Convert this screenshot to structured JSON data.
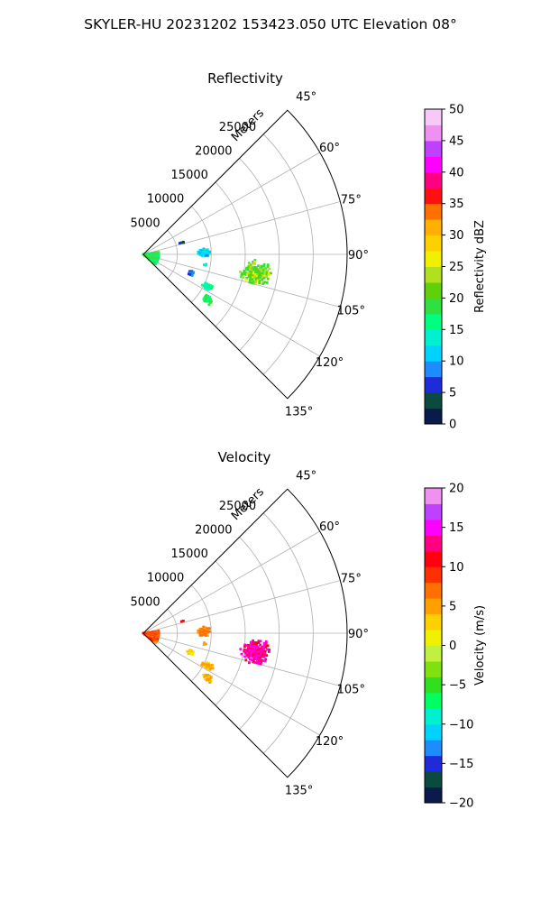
{
  "figure_title": "SKYLER-HU  20231202  153423.050 UTC Elevation 08°",
  "chart_data": [
    {
      "type": "heatmap",
      "title": "Reflectivity",
      "radial_label": "Meters",
      "radial_ticks": [
        "5000",
        "10000",
        "15000",
        "20000",
        "25000"
      ],
      "radial_values": [
        5000,
        10000,
        15000,
        20000,
        25000
      ],
      "range_max": 30000,
      "azimuth_range": [
        45,
        135
      ],
      "azimuth_ticks": [
        "45°",
        "60°",
        "75°",
        "90°",
        "105°",
        "120°",
        "135°"
      ],
      "azimuth_values": [
        45,
        60,
        75,
        90,
        105,
        120,
        135
      ],
      "colorbar": {
        "label": "Reflectivity dBZ",
        "range": [
          0,
          50
        ],
        "ticks": [
          "0",
          "5",
          "10",
          "15",
          "20",
          "25",
          "30",
          "35",
          "40",
          "45",
          "50"
        ],
        "tick_values": [
          0,
          5,
          10,
          15,
          20,
          25,
          30,
          35,
          40,
          45,
          50
        ],
        "colormap": [
          {
            "v": 0,
            "c": "#0a1a4a"
          },
          {
            "v": 2.5,
            "c": "#0b4a3e"
          },
          {
            "v": 5,
            "c": "#1f2bd8"
          },
          {
            "v": 7.5,
            "c": "#1c8cff"
          },
          {
            "v": 10,
            "c": "#00d2ff"
          },
          {
            "v": 12.5,
            "c": "#00f0d0"
          },
          {
            "v": 15,
            "c": "#00ff80"
          },
          {
            "v": 17.5,
            "c": "#30e040"
          },
          {
            "v": 20,
            "c": "#60d00a"
          },
          {
            "v": 22.5,
            "c": "#b0e020"
          },
          {
            "v": 25,
            "c": "#f0f000"
          },
          {
            "v": 27.5,
            "c": "#ffd000"
          },
          {
            "v": 30,
            "c": "#ffb000"
          },
          {
            "v": 32.5,
            "c": "#ff7000"
          },
          {
            "v": 35,
            "c": "#ff1010"
          },
          {
            "v": 37.5,
            "c": "#ff0080"
          },
          {
            "v": 40,
            "c": "#ff00ff"
          },
          {
            "v": 42.5,
            "c": "#c040ff"
          },
          {
            "v": 45,
            "c": "#f090f0"
          },
          {
            "v": 47.5,
            "c": "#f8c8f8"
          },
          {
            "v": 50,
            "c": "#fff0ff"
          }
        ]
      },
      "echo_regions": [
        {
          "az": [
            82,
            130
          ],
          "r": [
            0,
            2500
          ],
          "values": [
            14,
            22
          ]
        },
        {
          "az": [
            72,
            74
          ],
          "r": [
            5600,
            6400
          ],
          "values": [
            3,
            8
          ]
        },
        {
          "az": [
            84,
            93
          ],
          "r": [
            7800,
            10000
          ],
          "values": [
            9,
            14
          ]
        },
        {
          "az": [
            98,
            101
          ],
          "r": [
            8800,
            9600
          ],
          "values": [
            12,
            15
          ]
        },
        {
          "az": [
            108,
            115
          ],
          "r": [
            7000,
            8000
          ],
          "values": [
            6,
            9
          ]
        },
        {
          "az": [
            114,
            120
          ],
          "r": [
            9500,
            11500
          ],
          "values": [
            14,
            18
          ]
        },
        {
          "az": [
            122,
            128
          ],
          "r": [
            10500,
            12500
          ],
          "values": [
            15,
            19
          ]
        },
        {
          "az": [
            93,
            106
          ],
          "r": [
            14500,
            19200
          ],
          "values": [
            17,
            26
          ]
        }
      ]
    },
    {
      "type": "heatmap",
      "title": "Velocity",
      "radial_label": "Meters",
      "radial_ticks": [
        "5000",
        "10000",
        "15000",
        "20000",
        "25000"
      ],
      "radial_values": [
        5000,
        10000,
        15000,
        20000,
        25000
      ],
      "range_max": 30000,
      "azimuth_range": [
        45,
        135
      ],
      "azimuth_ticks": [
        "45°",
        "60°",
        "75°",
        "90°",
        "105°",
        "120°",
        "135°"
      ],
      "azimuth_values": [
        45,
        60,
        75,
        90,
        105,
        120,
        135
      ],
      "colorbar": {
        "label": "Velocity (m/s)",
        "range": [
          -20,
          20
        ],
        "ticks": [
          "−20",
          "−15",
          "−10",
          "−5",
          "0",
          "5",
          "10",
          "15",
          "20"
        ],
        "tick_values": [
          -20,
          -15,
          -10,
          -5,
          0,
          5,
          10,
          15,
          20
        ],
        "colormap": [
          {
            "v": -20,
            "c": "#0a1a4a"
          },
          {
            "v": -18,
            "c": "#0b4a3e"
          },
          {
            "v": -16,
            "c": "#1f2bd8"
          },
          {
            "v": -14,
            "c": "#1c8cff"
          },
          {
            "v": -12,
            "c": "#00d2ff"
          },
          {
            "v": -10,
            "c": "#00f0d0"
          },
          {
            "v": -8,
            "c": "#00ff60"
          },
          {
            "v": -6,
            "c": "#30e020"
          },
          {
            "v": -4,
            "c": "#80e010"
          },
          {
            "v": -2,
            "c": "#c0f040"
          },
          {
            "v": 0,
            "c": "#f0f000"
          },
          {
            "v": 2,
            "c": "#ffd000"
          },
          {
            "v": 4,
            "c": "#ffa000"
          },
          {
            "v": 6,
            "c": "#ff7000"
          },
          {
            "v": 8,
            "c": "#ff3000"
          },
          {
            "v": 10,
            "c": "#ff0010"
          },
          {
            "v": 12,
            "c": "#ff0080"
          },
          {
            "v": 14,
            "c": "#ff00ff"
          },
          {
            "v": 16,
            "c": "#c040ff"
          },
          {
            "v": 18,
            "c": "#f090f0"
          },
          {
            "v": 20,
            "c": "#fff0ff"
          }
        ]
      },
      "echo_regions": [
        {
          "az": [
            82,
            128
          ],
          "r": [
            0,
            2500
          ],
          "values": [
            4,
            12
          ]
        },
        {
          "az": [
            72,
            74
          ],
          "r": [
            5600,
            6400
          ],
          "values": [
            10,
            12
          ]
        },
        {
          "az": [
            84,
            93
          ],
          "r": [
            7800,
            10000
          ],
          "values": [
            5,
            8
          ]
        },
        {
          "az": [
            98,
            101
          ],
          "r": [
            8800,
            9600
          ],
          "values": [
            5,
            7
          ]
        },
        {
          "az": [
            108,
            115
          ],
          "r": [
            7000,
            8000
          ],
          "values": [
            1,
            3
          ]
        },
        {
          "az": [
            114,
            120
          ],
          "r": [
            9500,
            11500
          ],
          "values": [
            3,
            6
          ]
        },
        {
          "az": [
            122,
            128
          ],
          "r": [
            10500,
            12500
          ],
          "values": [
            3,
            6
          ]
        },
        {
          "az": [
            93,
            106
          ],
          "r": [
            14500,
            19200
          ],
          "values": [
            11,
            16
          ]
        }
      ]
    }
  ]
}
